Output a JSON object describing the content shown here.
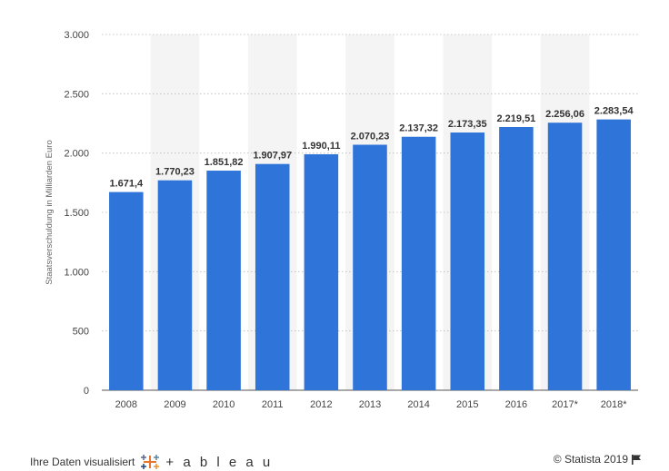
{
  "chart_data": {
    "type": "bar",
    "categories": [
      "2008",
      "2009",
      "2010",
      "2011",
      "2012",
      "2013",
      "2014",
      "2015",
      "2016",
      "2017*",
      "2018*"
    ],
    "values": [
      1671.4,
      1770.23,
      1851.82,
      1907.97,
      1990.11,
      2070.23,
      2137.32,
      2173.35,
      2219.51,
      2256.06,
      2283.54
    ],
    "value_labels": [
      "1.671,4",
      "1.770,23",
      "1.851,82",
      "1.907,97",
      "1.990,11",
      "2.070,23",
      "2.137,32",
      "2.173,35",
      "2.219,51",
      "2.256,06",
      "2.283,54"
    ],
    "ylabel": "Staatsverschuldung in Milliarden Euro",
    "yticks": [
      0,
      500,
      1000,
      1500,
      2000,
      2500,
      3000
    ],
    "ytick_labels": [
      "0",
      "500",
      "1.000",
      "1.500",
      "2.000",
      "2.500",
      "3.000"
    ],
    "ylim": [
      0,
      3000
    ],
    "grid": true,
    "bar_color": "#2f74d9",
    "band_color": "#f4f4f4"
  },
  "footer": {
    "visualize_text": "Ihre Daten visualisiert",
    "tableau_brand": "+ a b l e a u",
    "copyright": "© Statista 2019",
    "flag_icon": "flag-icon"
  }
}
